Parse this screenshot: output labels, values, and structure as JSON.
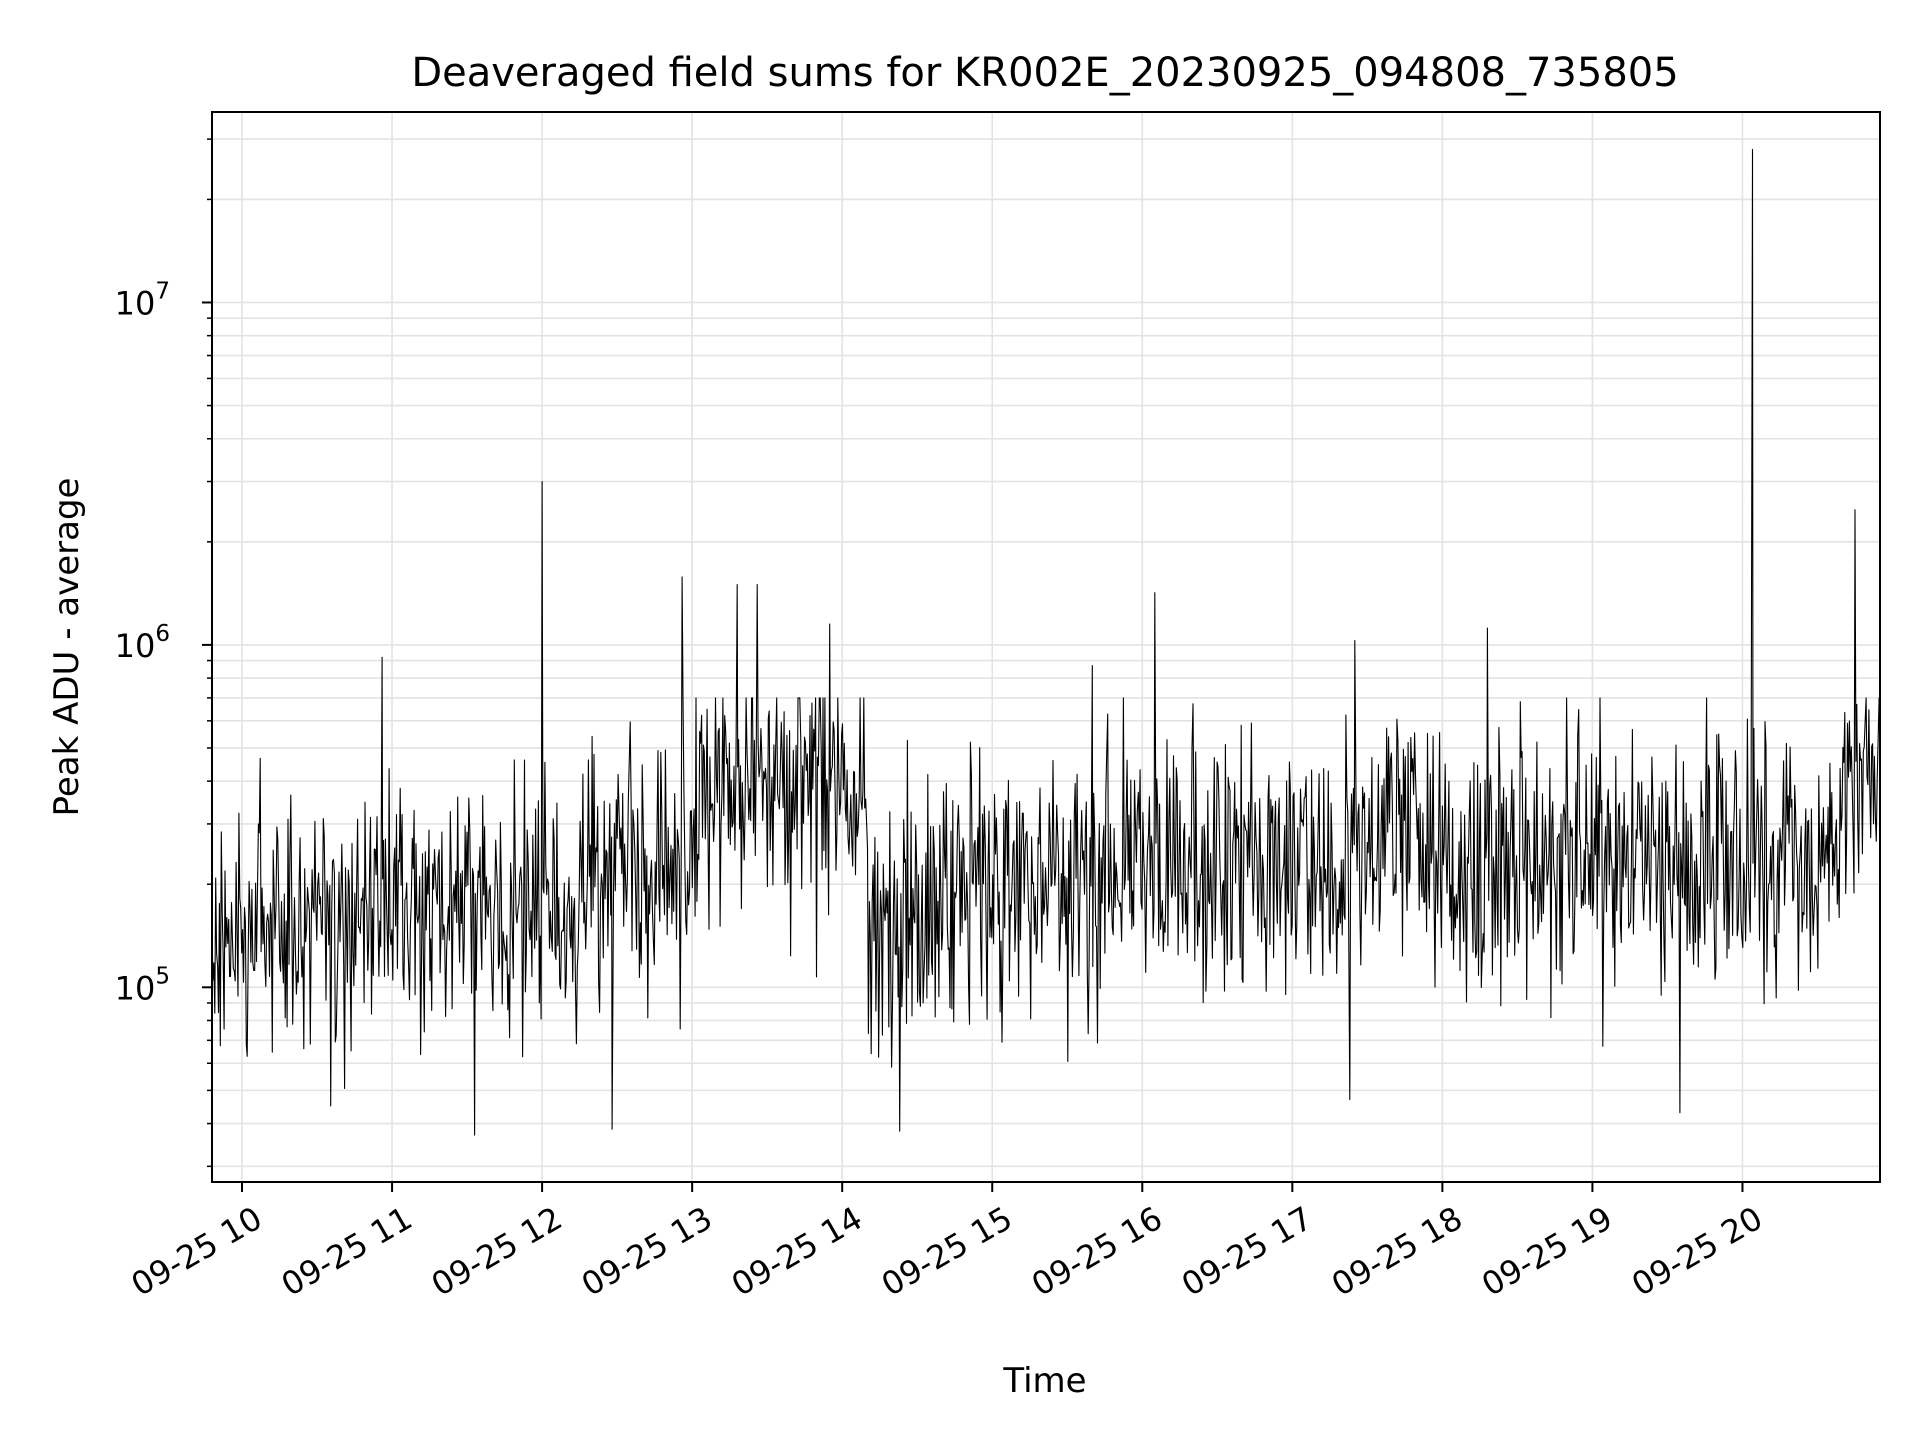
{
  "chart_data": {
    "type": "line",
    "title": "Deaveraged field sums for KR002E_20230925_094808_735805",
    "xlabel": "Time",
    "ylabel": "Peak ADU - average",
    "x_range": [
      "2023-09-25 09:48",
      "2023-09-25 20:55"
    ],
    "y_scale": "log",
    "ylim": [
      27000,
      36000000
    ],
    "grid": true,
    "line_color": "#000000",
    "x_tick_labels": [
      "09-25 10",
      "09-25 11",
      "09-25 12",
      "09-25 13",
      "09-25 14",
      "09-25 15",
      "09-25 16",
      "09-25 17",
      "09-25 18",
      "09-25 19",
      "09-25 20"
    ],
    "y_tick_labels": [
      {
        "base": "10",
        "exp": "5"
      },
      {
        "base": "10",
        "exp": "6"
      },
      {
        "base": "10",
        "exp": "7"
      }
    ],
    "segments": [
      {
        "start": "09:48",
        "end": "10:30",
        "median": 150000
      },
      {
        "start": "10:30",
        "end": "11:30",
        "median": 160000
      },
      {
        "start": "11:30",
        "end": "12:15",
        "median": 170000
      },
      {
        "start": "12:15",
        "end": "13:00",
        "median": 230000
      },
      {
        "start": "13:00",
        "end": "13:35",
        "median": 400000
      },
      {
        "start": "13:35",
        "end": "14:10",
        "median": 370000
      },
      {
        "start": "14:10",
        "end": "14:45",
        "median": 160000
      },
      {
        "start": "14:45",
        "end": "15:45",
        "median": 200000
      },
      {
        "start": "15:45",
        "end": "17:20",
        "median": 240000
      },
      {
        "start": "17:20",
        "end": "17:50",
        "median": 320000
      },
      {
        "start": "17:50",
        "end": "20:40",
        "median": 230000
      },
      {
        "start": "20:40",
        "end": "20:55",
        "median": 420000
      }
    ],
    "spikes": [
      {
        "time": "10:56",
        "value": 920000
      },
      {
        "time": "12:00",
        "value": 3000000
      },
      {
        "time": "12:56",
        "value": 1580000
      },
      {
        "time": "13:18",
        "value": 1500000
      },
      {
        "time": "13:26",
        "value": 1500000
      },
      {
        "time": "13:55",
        "value": 1150000
      },
      {
        "time": "15:40",
        "value": 870000
      },
      {
        "time": "16:05",
        "value": 1420000
      },
      {
        "time": "17:25",
        "value": 1030000
      },
      {
        "time": "18:18",
        "value": 1120000
      },
      {
        "time": "20:04",
        "value": 28000000
      },
      {
        "time": "20:45",
        "value": 2480000
      }
    ],
    "dips": [
      {
        "time": "11:33",
        "value": 37000
      },
      {
        "time": "12:28",
        "value": 38500
      },
      {
        "time": "14:23",
        "value": 38000
      },
      {
        "time": "17:23",
        "value": 47000
      },
      {
        "time": "19:35",
        "value": 43000
      }
    ]
  }
}
